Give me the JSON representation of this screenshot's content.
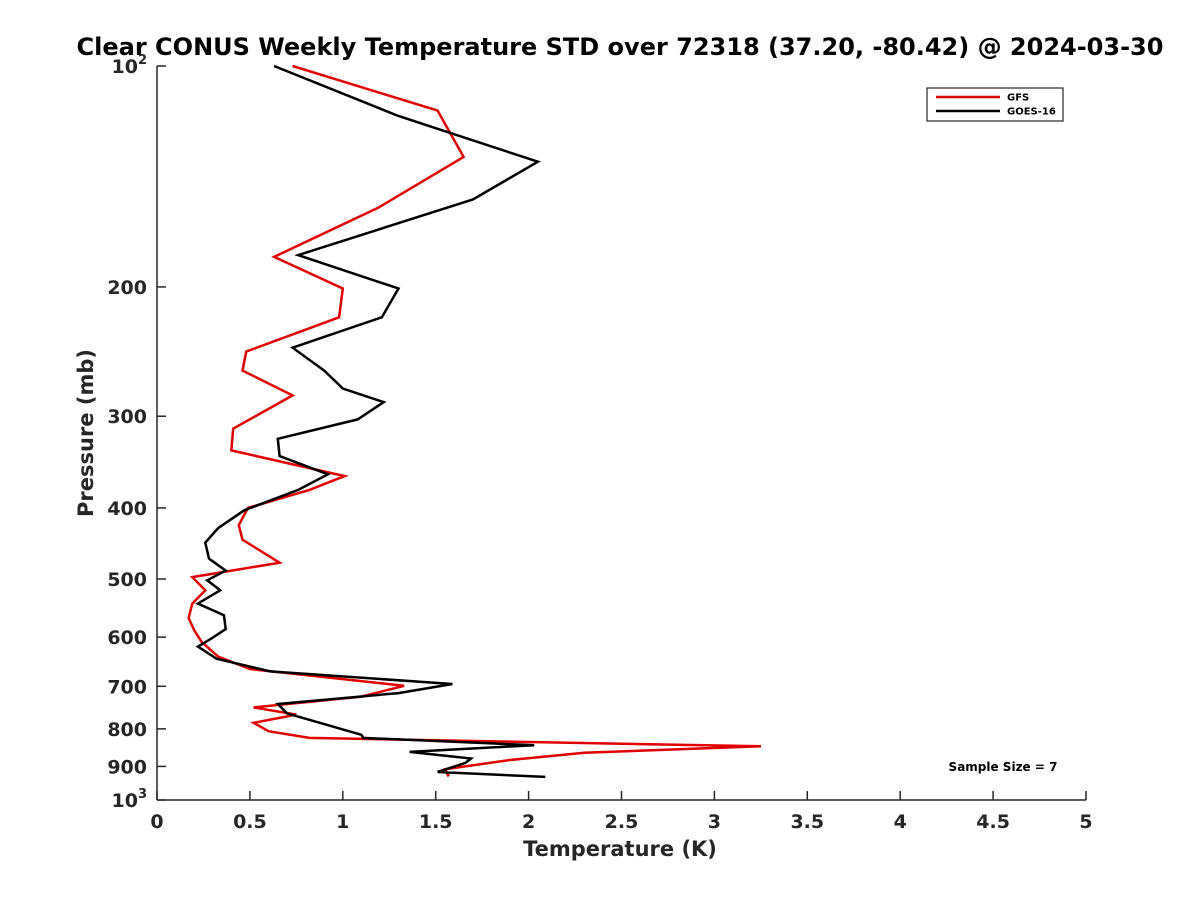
{
  "chart_data": {
    "type": "line",
    "title": "Clear CONUS Weekly Temperature STD over 72318 (37.20, -80.42) @ 2024-03-30",
    "xlabel": "Temperature (K)",
    "ylabel": "Pressure (mb)",
    "xlim": [
      0,
      5
    ],
    "ylim": [
      100,
      1000
    ],
    "yscale": "log",
    "y_reversed": true,
    "xticks": [
      "0",
      "0.5",
      "1",
      "1.5",
      "2",
      "2.5",
      "3",
      "3.5",
      "4",
      "4.5",
      "5"
    ],
    "yticks": [
      {
        "value": 100,
        "base": "10",
        "exp": "2"
      },
      {
        "value": 200,
        "label": "200"
      },
      {
        "value": 300,
        "label": "300"
      },
      {
        "value": 400,
        "label": "400"
      },
      {
        "value": 500,
        "label": "500"
      },
      {
        "value": 600,
        "label": "600"
      },
      {
        "value": 700,
        "label": "700"
      },
      {
        "value": 800,
        "label": "800"
      },
      {
        "value": 900,
        "label": "900"
      },
      {
        "value": 1000,
        "base": "10",
        "exp": "3"
      }
    ],
    "grid": false,
    "legend_position": "top-right",
    "series": [
      {
        "name": "GFS",
        "color": "#e00000",
        "points": [
          [
            0.73,
            100
          ],
          [
            1.51,
            115
          ],
          [
            1.65,
            133
          ],
          [
            1.19,
            156
          ],
          [
            0.63,
            182
          ],
          [
            1.0,
            201
          ],
          [
            0.98,
            220
          ],
          [
            0.48,
            245
          ],
          [
            0.46,
            260
          ],
          [
            0.73,
            281
          ],
          [
            0.41,
            312
          ],
          [
            0.4,
            334
          ],
          [
            1.01,
            362
          ],
          [
            0.82,
            378
          ],
          [
            0.49,
            400
          ],
          [
            0.44,
            422
          ],
          [
            0.46,
            442
          ],
          [
            0.66,
            475
          ],
          [
            0.19,
            497
          ],
          [
            0.26,
            518
          ],
          [
            0.19,
            540
          ],
          [
            0.17,
            565
          ],
          [
            0.2,
            587
          ],
          [
            0.24,
            609
          ],
          [
            0.33,
            638
          ],
          [
            0.5,
            663
          ],
          [
            1.33,
            699
          ],
          [
            1.1,
            723
          ],
          [
            0.52,
            748
          ],
          [
            0.75,
            765
          ],
          [
            0.52,
            785
          ],
          [
            0.6,
            806
          ],
          [
            0.82,
            823
          ],
          [
            3.25,
            845
          ],
          [
            2.3,
            862
          ],
          [
            1.9,
            882
          ],
          [
            1.55,
            908
          ],
          [
            1.57,
            929
          ]
        ]
      },
      {
        "name": "GOES-16",
        "color": "#000000",
        "points": [
          [
            0.63,
            100
          ],
          [
            1.3,
            117
          ],
          [
            2.05,
            135
          ],
          [
            1.7,
            152
          ],
          [
            0.76,
            181
          ],
          [
            1.3,
            201
          ],
          [
            1.21,
            220
          ],
          [
            0.73,
            242
          ],
          [
            0.9,
            260
          ],
          [
            1.0,
            275
          ],
          [
            1.22,
            287
          ],
          [
            1.08,
            303
          ],
          [
            0.65,
            322
          ],
          [
            0.66,
            340
          ],
          [
            0.92,
            360
          ],
          [
            0.76,
            378
          ],
          [
            0.47,
            403
          ],
          [
            0.33,
            426
          ],
          [
            0.26,
            446
          ],
          [
            0.28,
            469
          ],
          [
            0.37,
            487
          ],
          [
            0.27,
            502
          ],
          [
            0.34,
            518
          ],
          [
            0.22,
            540
          ],
          [
            0.36,
            560
          ],
          [
            0.37,
            585
          ],
          [
            0.29,
            603
          ],
          [
            0.22,
            618
          ],
          [
            0.32,
            642
          ],
          [
            0.61,
            668
          ],
          [
            1.59,
            695
          ],
          [
            1.3,
            715
          ],
          [
            0.65,
            740
          ],
          [
            0.7,
            762
          ],
          [
            0.89,
            787
          ],
          [
            1.1,
            815
          ],
          [
            1.11,
            823
          ],
          [
            2.03,
            842
          ],
          [
            1.36,
            860
          ],
          [
            1.69,
            878
          ],
          [
            1.66,
            890
          ],
          [
            1.51,
            916
          ],
          [
            2.09,
            930
          ]
        ]
      }
    ],
    "annotations": [
      {
        "text": "Sample Size = 7"
      }
    ]
  }
}
